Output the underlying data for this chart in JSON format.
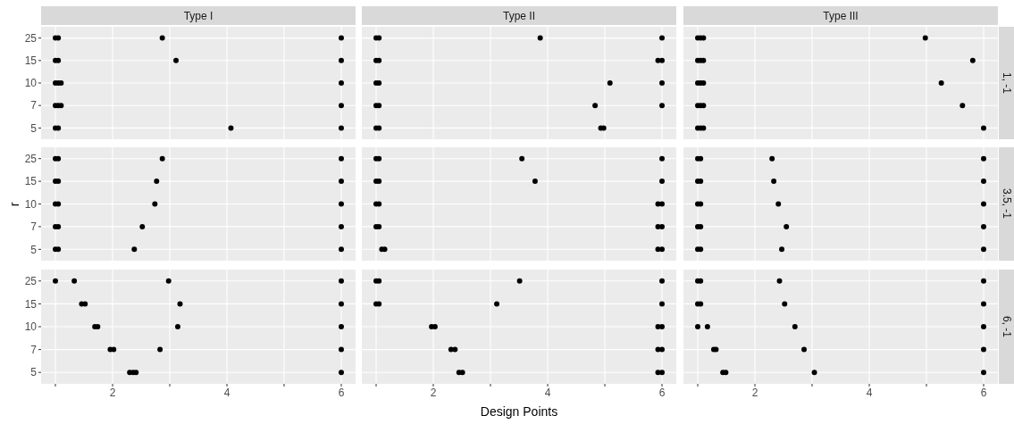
{
  "chart_data": [
    {
      "type": "scatter",
      "orientation": "horizontal",
      "title": "Type I",
      "categories": [
        "25",
        "15",
        "10",
        "7",
        "5"
      ],
      "xlim": [
        0.75,
        6.25
      ],
      "xticks": [
        {
          "value": 1,
          "label": null
        },
        2,
        {
          "value": 3,
          "label": null
        },
        4,
        {
          "value": 5,
          "label": null
        },
        6
      ],
      "grid": true,
      "marker": "circle",
      "tick_labels": "y",
      "series": [
        {
          "color": "#000000",
          "x": [
            "25",
            "25",
            "25",
            "25",
            "15",
            "15",
            "15",
            "15",
            "10",
            "10",
            "10",
            "10",
            "7",
            "7",
            "7",
            "7",
            "5",
            "5",
            "5",
            "5"
          ],
          "values": [
            1,
            1.05,
            2.87,
            6,
            1,
            1.05,
            3.11,
            6,
            1,
            1.05,
            1.1,
            6,
            1,
            1.05,
            1.1,
            6,
            1,
            1.05,
            4.07,
            6
          ]
        }
      ]
    },
    {
      "type": "scatter",
      "orientation": "horizontal",
      "title": "Type II",
      "categories": [
        "25",
        "15",
        "10",
        "7",
        "5"
      ],
      "xlim": [
        0.75,
        6.25
      ],
      "xticks": [
        {
          "value": 1,
          "label": null
        },
        2,
        {
          "value": 3,
          "label": null
        },
        4,
        {
          "value": 5,
          "label": null
        },
        6
      ],
      "grid": true,
      "marker": "circle",
      "tick_labels": false,
      "series": [
        {
          "color": "#000000",
          "x": [
            "25",
            "25",
            "25",
            "25",
            "15",
            "15",
            "15",
            "15",
            "10",
            "10",
            "10",
            "10",
            "7",
            "7",
            "7",
            "7",
            "5",
            "5",
            "5",
            "5"
          ],
          "values": [
            1,
            1.05,
            3.87,
            6,
            1,
            1.05,
            5.93,
            6,
            1,
            1.05,
            5.09,
            6,
            1,
            1.05,
            4.83,
            6,
            1,
            1.05,
            4.93,
            4.98
          ]
        }
      ]
    },
    {
      "type": "scatter",
      "orientation": "horizontal",
      "title": "Type III",
      "annotations": [
        "1, -1"
      ],
      "categories": [
        "25",
        "15",
        "10",
        "7",
        "5"
      ],
      "xlim": [
        0.75,
        6.25
      ],
      "xticks": [
        {
          "value": 1,
          "label": null
        },
        2,
        {
          "value": 3,
          "label": null
        },
        4,
        {
          "value": 5,
          "label": null
        },
        6
      ],
      "grid": true,
      "marker": "circle",
      "tick_labels": false,
      "series": [
        {
          "color": "#000000",
          "x": [
            "25",
            "25",
            "25",
            "25",
            "15",
            "15",
            "15",
            "15",
            "10",
            "10",
            "10",
            "10",
            "7",
            "7",
            "7",
            "7",
            "5",
            "5",
            "5",
            "5"
          ],
          "values": [
            1,
            1.05,
            1.1,
            4.98,
            1,
            1.05,
            1.1,
            5.81,
            1,
            1.05,
            1.1,
            5.26,
            1,
            1.05,
            1.1,
            5.63,
            1,
            1.05,
            1.1,
            6
          ]
        }
      ]
    },
    {
      "type": "scatter",
      "orientation": "horizontal",
      "ylabel": "r",
      "categories": [
        "25",
        "15",
        "10",
        "7",
        "5"
      ],
      "xlim": [
        0.75,
        6.25
      ],
      "xticks": [
        {
          "value": 1,
          "label": null
        },
        2,
        {
          "value": 3,
          "label": null
        },
        4,
        {
          "value": 5,
          "label": null
        },
        6
      ],
      "grid": true,
      "marker": "circle",
      "tick_labels": "y",
      "series": [
        {
          "color": "#000000",
          "x": [
            "25",
            "25",
            "25",
            "25",
            "15",
            "15",
            "15",
            "15",
            "10",
            "10",
            "10",
            "10",
            "7",
            "7",
            "7",
            "7",
            "5",
            "5",
            "5",
            "5"
          ],
          "values": [
            1,
            1.05,
            2.87,
            6,
            1,
            1.05,
            2.77,
            6,
            1,
            1.05,
            2.74,
            6,
            1,
            1.05,
            2.52,
            6,
            1,
            1.05,
            2.38,
            6
          ]
        }
      ]
    },
    {
      "type": "scatter",
      "orientation": "horizontal",
      "categories": [
        "25",
        "15",
        "10",
        "7",
        "5"
      ],
      "xlim": [
        0.75,
        6.25
      ],
      "xticks": [
        {
          "value": 1,
          "label": null
        },
        2,
        {
          "value": 3,
          "label": null
        },
        4,
        {
          "value": 5,
          "label": null
        },
        6
      ],
      "grid": true,
      "marker": "circle",
      "tick_labels": false,
      "series": [
        {
          "color": "#000000",
          "x": [
            "25",
            "25",
            "25",
            "25",
            "15",
            "15",
            "15",
            "15",
            "10",
            "10",
            "10",
            "10",
            "7",
            "7",
            "7",
            "7",
            "5",
            "5",
            "5",
            "5"
          ],
          "values": [
            1,
            1.05,
            3.55,
            6,
            1,
            1.05,
            3.78,
            6,
            1,
            1.05,
            5.93,
            6,
            1,
            1.05,
            5.93,
            6,
            1.1,
            1.15,
            5.93,
            6
          ]
        }
      ]
    },
    {
      "type": "scatter",
      "orientation": "horizontal",
      "annotations": [
        "3.5, -1"
      ],
      "categories": [
        "25",
        "15",
        "10",
        "7",
        "5"
      ],
      "xlim": [
        0.75,
        6.25
      ],
      "xticks": [
        {
          "value": 1,
          "label": null
        },
        2,
        {
          "value": 3,
          "label": null
        },
        4,
        {
          "value": 5,
          "label": null
        },
        6
      ],
      "grid": true,
      "marker": "circle",
      "tick_labels": false,
      "series": [
        {
          "color": "#000000",
          "x": [
            "25",
            "25",
            "25",
            "25",
            "15",
            "15",
            "15",
            "15",
            "10",
            "10",
            "10",
            "10",
            "7",
            "7",
            "7",
            "7",
            "5",
            "5",
            "5",
            "5"
          ],
          "values": [
            1,
            1.05,
            2.3,
            6,
            1,
            1.05,
            2.33,
            6,
            1,
            1.05,
            2.41,
            6,
            1,
            1.05,
            2.55,
            6,
            1,
            1.05,
            2.47,
            6
          ]
        }
      ]
    },
    {
      "type": "scatter",
      "orientation": "horizontal",
      "categories": [
        "25",
        "15",
        "10",
        "7",
        "5"
      ],
      "xlim": [
        0.75,
        6.25
      ],
      "xticks": [
        {
          "value": 1,
          "label": null
        },
        2,
        {
          "value": 3,
          "label": null
        },
        4,
        {
          "value": 5,
          "label": null
        },
        6
      ],
      "grid": true,
      "marker": "circle",
      "series": [
        {
          "color": "#000000",
          "x": [
            "25",
            "25",
            "25",
            "25",
            "15",
            "15",
            "15",
            "15",
            "10",
            "10",
            "10",
            "10",
            "7",
            "7",
            "7",
            "7",
            "5",
            "5",
            "5",
            "5"
          ],
          "values": [
            1,
            1.33,
            2.98,
            6,
            1.46,
            1.52,
            3.18,
            6,
            1.69,
            1.74,
            3.14,
            6,
            1.96,
            2.02,
            2.83,
            6,
            2.3,
            2.36,
            2.41,
            6
          ]
        }
      ]
    },
    {
      "type": "scatter",
      "orientation": "horizontal",
      "xlabel": "Design Points",
      "categories": [
        "25",
        "15",
        "10",
        "7",
        "5"
      ],
      "xlim": [
        0.75,
        6.25
      ],
      "xticks": [
        {
          "value": 1,
          "label": null
        },
        2,
        {
          "value": 3,
          "label": null
        },
        4,
        {
          "value": 5,
          "label": null
        },
        6
      ],
      "grid": true,
      "marker": "circle",
      "tick_labels": "x",
      "series": [
        {
          "color": "#000000",
          "x": [
            "25",
            "25",
            "25",
            "25",
            "15",
            "15",
            "15",
            "15",
            "10",
            "10",
            "10",
            "10",
            "7",
            "7",
            "7",
            "7",
            "5",
            "5",
            "5",
            "5"
          ],
          "values": [
            1,
            1.05,
            3.51,
            6,
            1,
            1.05,
            3.11,
            6,
            1.97,
            2.03,
            5.93,
            6,
            2.31,
            2.38,
            5.93,
            6,
            2.45,
            2.51,
            5.93,
            6
          ]
        }
      ]
    },
    {
      "type": "scatter",
      "orientation": "horizontal",
      "annotations": [
        "6, -1"
      ],
      "categories": [
        "25",
        "15",
        "10",
        "7",
        "5"
      ],
      "xlim": [
        0.75,
        6.25
      ],
      "xticks": [
        {
          "value": 1,
          "label": null
        },
        2,
        {
          "value": 3,
          "label": null
        },
        4,
        {
          "value": 5,
          "label": null
        },
        6
      ],
      "grid": true,
      "marker": "circle",
      "tick_labels": "x",
      "series": [
        {
          "color": "#000000",
          "x": [
            "25",
            "25",
            "25",
            "25",
            "15",
            "15",
            "15",
            "15",
            "10",
            "10",
            "10",
            "10",
            "7",
            "7",
            "7",
            "7",
            "5",
            "5",
            "5",
            "5"
          ],
          "values": [
            1,
            1.05,
            2.43,
            6,
            1,
            1.05,
            2.52,
            6,
            1,
            1.17,
            2.7,
            6,
            1.28,
            1.32,
            2.86,
            6,
            1.44,
            1.49,
            3.04,
            6
          ]
        }
      ]
    }
  ]
}
